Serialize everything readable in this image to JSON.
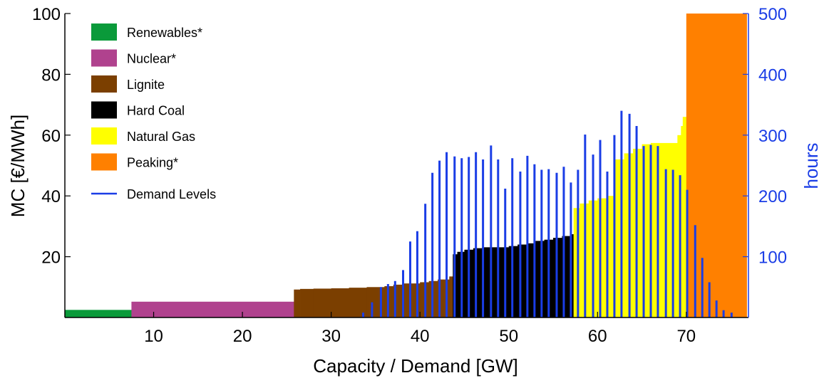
{
  "chart_data": {
    "type": "bar",
    "title": "",
    "xlabel": "Capacity / Demand [GW]",
    "ylabel_left": "MC [€/MWh]",
    "ylabel_right": "hours",
    "xlim": [
      0,
      77
    ],
    "ylim_left": [
      0,
      100
    ],
    "ylim_right": [
      0,
      500
    ],
    "xticks": [
      10,
      20,
      30,
      40,
      50,
      60,
      70
    ],
    "yticks_left": [
      20,
      40,
      60,
      80,
      100
    ],
    "yticks_right": [
      100,
      200,
      300,
      400,
      500
    ],
    "grid": false,
    "legend_position": "top-left",
    "legend": [
      {
        "label": "Renewables*",
        "color": "#0a9a3a",
        "kind": "patch"
      },
      {
        "label": "Nuclear*",
        "color": "#b0428e",
        "kind": "patch"
      },
      {
        "label": "Lignite",
        "color": "#7b3f00",
        "kind": "patch"
      },
      {
        "label": "Hard Coal",
        "color": "#000000",
        "kind": "patch"
      },
      {
        "label": "Natural Gas",
        "color": "#ffff00",
        "kind": "patch"
      },
      {
        "label": "Peaking*",
        "color": "#ff8000",
        "kind": "patch"
      },
      {
        "label": "Demand Levels",
        "color": "#1a3de6",
        "kind": "line"
      }
    ],
    "supply_blocks": [
      {
        "name": "Renewables*",
        "color": "#0a9a3a",
        "steps": [
          [
            0,
            7.5,
            2.5
          ]
        ]
      },
      {
        "name": "Nuclear*",
        "color": "#b0428e",
        "steps": [
          [
            7.5,
            25.8,
            5.2
          ]
        ]
      },
      {
        "name": "Lignite",
        "color": "#7b3f00",
        "steps": [
          [
            25.8,
            26.5,
            9.2
          ],
          [
            26.5,
            28.0,
            9.4
          ],
          [
            28.0,
            30.0,
            9.5
          ],
          [
            30.0,
            32.0,
            9.6
          ],
          [
            32.0,
            34.0,
            9.8
          ],
          [
            34.0,
            36.0,
            10.0
          ],
          [
            36.0,
            37.0,
            10.3
          ],
          [
            37.0,
            38.0,
            10.8
          ],
          [
            38.0,
            40.0,
            11.2
          ],
          [
            40.0,
            41.0,
            11.6
          ],
          [
            41.0,
            42.0,
            12.0
          ],
          [
            42.0,
            43.3,
            12.5
          ],
          [
            43.3,
            43.7,
            13.5
          ]
        ]
      },
      {
        "name": "Hard Coal",
        "color": "#000000",
        "steps": [
          [
            43.7,
            44.2,
            20.8
          ],
          [
            44.2,
            45.0,
            21.6
          ],
          [
            45.0,
            46.0,
            22.3
          ],
          [
            46.0,
            47.0,
            22.8
          ],
          [
            47.0,
            50.0,
            23.1
          ],
          [
            50.0,
            51.0,
            23.5
          ],
          [
            51.0,
            52.0,
            24.0
          ],
          [
            52.0,
            53.0,
            24.4
          ],
          [
            53.0,
            54.0,
            25.2
          ],
          [
            54.0,
            55.0,
            25.6
          ],
          [
            55.0,
            56.0,
            26.2
          ],
          [
            56.0,
            57.0,
            26.8
          ],
          [
            57.0,
            57.3,
            27.4
          ]
        ]
      },
      {
        "name": "Natural Gas",
        "color": "#ffff00",
        "steps": [
          [
            57.3,
            58.0,
            36.0
          ],
          [
            58.0,
            59.0,
            37.5
          ],
          [
            59.0,
            60.0,
            38.5
          ],
          [
            60.0,
            61.0,
            39.2
          ],
          [
            61.0,
            62.0,
            40.0
          ],
          [
            62.0,
            63.0,
            52.0
          ],
          [
            63.0,
            64.0,
            54.0
          ],
          [
            64.0,
            65.0,
            55.5
          ],
          [
            65.0,
            66.0,
            57.0
          ],
          [
            66.0,
            69.0,
            57.4
          ],
          [
            69.0,
            69.4,
            60.0
          ],
          [
            69.4,
            69.6,
            63.0
          ],
          [
            69.6,
            70.0,
            66.0
          ]
        ]
      },
      {
        "name": "Peaking*",
        "color": "#ff8000",
        "steps": [
          [
            70.0,
            76.8,
            100
          ]
        ]
      }
    ],
    "demand_levels": {
      "name": "Demand Levels",
      "color": "#1a3de6",
      "x": [
        33.6,
        34.6,
        35.6,
        36.4,
        37.2,
        38.1,
        38.9,
        39.7,
        40.6,
        41.4,
        42.2,
        43.0,
        43.9,
        44.7,
        45.5,
        46.3,
        47.1,
        48.0,
        48.8,
        49.6,
        50.4,
        51.3,
        52.1,
        52.9,
        53.7,
        54.5,
        55.4,
        56.2,
        57.0,
        57.8,
        58.6,
        59.5,
        60.3,
        61.1,
        61.9,
        62.7,
        63.6,
        64.4,
        65.2,
        66.0,
        66.8,
        67.7,
        68.5,
        69.3,
        70.1,
        71.0,
        71.8,
        72.6,
        73.4,
        74.2,
        75.1
      ],
      "values": [
        8,
        25,
        50,
        55,
        60,
        78,
        125,
        142,
        187,
        238,
        258,
        272,
        265,
        262,
        264,
        272,
        260,
        283,
        260,
        212,
        262,
        240,
        266,
        252,
        243,
        244,
        238,
        248,
        222,
        243,
        301,
        268,
        292,
        240,
        300,
        340,
        335,
        315,
        282,
        284,
        282,
        244,
        243,
        234,
        210,
        152,
        98,
        58,
        28,
        12,
        8
      ]
    }
  }
}
